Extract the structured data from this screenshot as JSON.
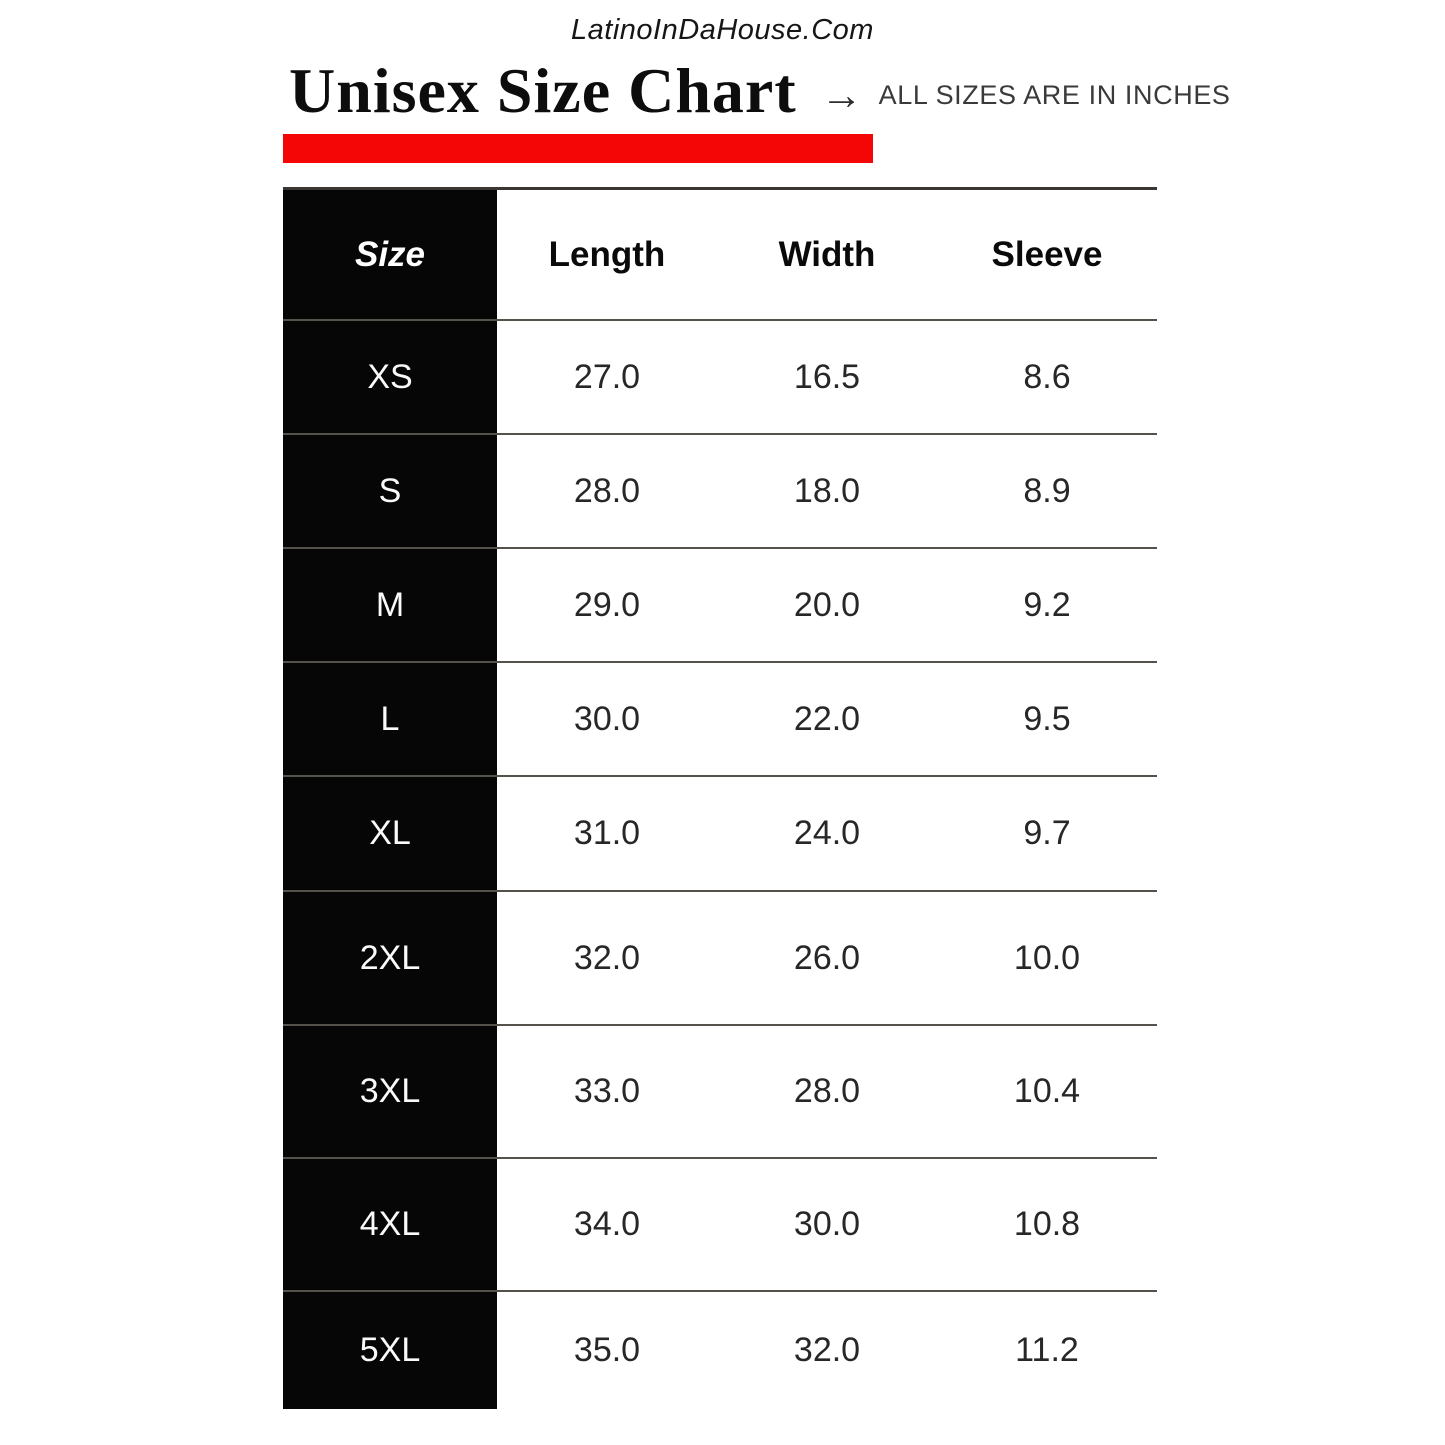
{
  "brand": "LatinoInDaHouse.Com",
  "header": {
    "title": "Unisex Size Chart",
    "arrow": "→",
    "caption": "ALL SIZES ARE IN INCHES"
  },
  "colors": {
    "accent_red": "#f50606",
    "table_black": "#060606"
  },
  "chart_data": {
    "type": "table",
    "title": "Unisex Size Chart",
    "units": "inches",
    "columns": [
      "Size",
      "Length",
      "Width",
      "Sleeve"
    ],
    "rows": [
      [
        "XS",
        "27.0",
        "16.5",
        "8.6"
      ],
      [
        "S",
        "28.0",
        "18.0",
        "8.9"
      ],
      [
        "M",
        "29.0",
        "20.0",
        "9.2"
      ],
      [
        "L",
        "30.0",
        "22.0",
        "9.5"
      ],
      [
        "XL",
        "31.0",
        "24.0",
        "9.7"
      ],
      [
        "2XL",
        "32.0",
        "26.0",
        "10.0"
      ],
      [
        "3XL",
        "33.0",
        "28.0",
        "10.4"
      ],
      [
        "4XL",
        "34.0",
        "30.0",
        "10.8"
      ],
      [
        "5XL",
        "35.0",
        "32.0",
        "11.2"
      ]
    ]
  }
}
